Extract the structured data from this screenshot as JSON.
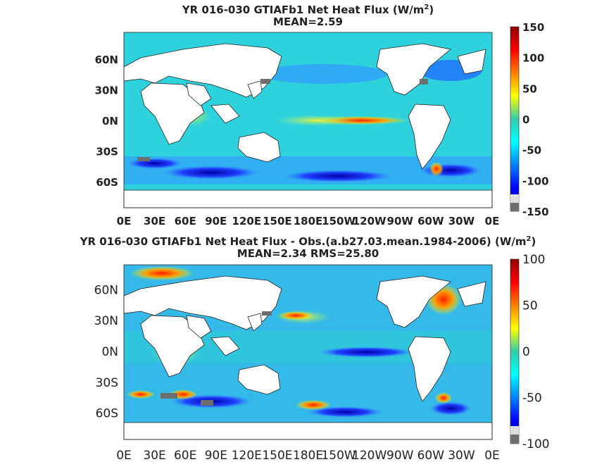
{
  "chart_data": [
    {
      "type": "heatmap",
      "title_line1": "YR 016-030 GTIAFb1  Net Heat Flux (W/m",
      "title_sup": "2",
      "title_close": ")",
      "subtitle": "MEAN=2.59",
      "x_tick_labels": [
        "0E",
        "30E",
        "60E",
        "90E",
        "120E",
        "150E",
        "180E",
        "150W",
        "120W",
        "90W",
        "60W",
        "30W",
        "0E"
      ],
      "y_tick_labels": [
        "60N",
        "30N",
        "0N",
        "30S",
        "60S"
      ],
      "y_tick_lat": [
        60,
        30,
        0,
        -30,
        -60
      ],
      "colorbar": {
        "ticks": [
          150,
          100,
          50,
          0,
          -50,
          -100,
          -150
        ],
        "range": [
          -150,
          150
        ]
      },
      "colorbar_tick_labels": [
        "150",
        "100",
        "50",
        "0",
        "-50",
        "-100",
        "-150"
      ]
    },
    {
      "type": "heatmap",
      "title_line1": "YR 016-030 GTIAFb1  Net Heat Flux - Obs.(a.b27.03.mean.1984-2006) (W/m",
      "title_sup": "2",
      "title_close": ")",
      "subtitle": "MEAN=2.34 RMS=25.80",
      "x_tick_labels": [
        "0E",
        "30E",
        "60E",
        "90E",
        "120E",
        "150E",
        "180E",
        "150W",
        "120W",
        "90W",
        "60W",
        "30W",
        "0E"
      ],
      "y_tick_labels": [
        "60N",
        "30N",
        "0N",
        "30S",
        "60S"
      ],
      "y_tick_lat": [
        60,
        30,
        0,
        -30,
        -60
      ],
      "colorbar": {
        "ticks": [
          100,
          50,
          0,
          -50,
          -100
        ],
        "range": [
          -100,
          100
        ]
      },
      "colorbar_tick_labels": [
        "100",
        "50",
        "0",
        "-50",
        "-100"
      ]
    }
  ],
  "colors": {
    "land": "#ffffff",
    "masked": "#6e6e6e",
    "ocean_base": "#33ccdd"
  }
}
